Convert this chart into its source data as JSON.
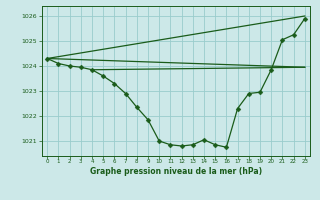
{
  "xlabel": "Graphe pression niveau de la mer (hPa)",
  "background_color": "#cce8e8",
  "line_color": "#1a5c1a",
  "grid_color": "#99cccc",
  "xlim": [
    -0.5,
    23.5
  ],
  "ylim": [
    1020.4,
    1026.4
  ],
  "yticks": [
    1021,
    1022,
    1023,
    1024,
    1025,
    1026
  ],
  "xticks": [
    0,
    1,
    2,
    3,
    4,
    5,
    6,
    7,
    8,
    9,
    10,
    11,
    12,
    13,
    14,
    15,
    16,
    17,
    18,
    19,
    20,
    21,
    22,
    23
  ],
  "curve_x": [
    0,
    1,
    2,
    3,
    4,
    5,
    6,
    7,
    8,
    9,
    10,
    11,
    12,
    13,
    14,
    15,
    16,
    17,
    18,
    19,
    20,
    21,
    22,
    23
  ],
  "curve_y": [
    1024.3,
    1024.1,
    1024.0,
    1023.95,
    1023.85,
    1023.6,
    1023.3,
    1022.9,
    1022.35,
    1021.85,
    1021.0,
    1020.85,
    1020.8,
    1020.85,
    1021.05,
    1020.85,
    1020.75,
    1022.3,
    1022.9,
    1022.95,
    1023.85,
    1025.05,
    1025.25,
    1025.9
  ],
  "flat_line": [
    [
      0,
      23
    ],
    [
      1024.3,
      1023.95
    ]
  ],
  "diag_line": [
    [
      0,
      23
    ],
    [
      1024.3,
      1026.0
    ]
  ],
  "flat2_line": [
    [
      4,
      23
    ],
    [
      1023.85,
      1023.95
    ]
  ]
}
